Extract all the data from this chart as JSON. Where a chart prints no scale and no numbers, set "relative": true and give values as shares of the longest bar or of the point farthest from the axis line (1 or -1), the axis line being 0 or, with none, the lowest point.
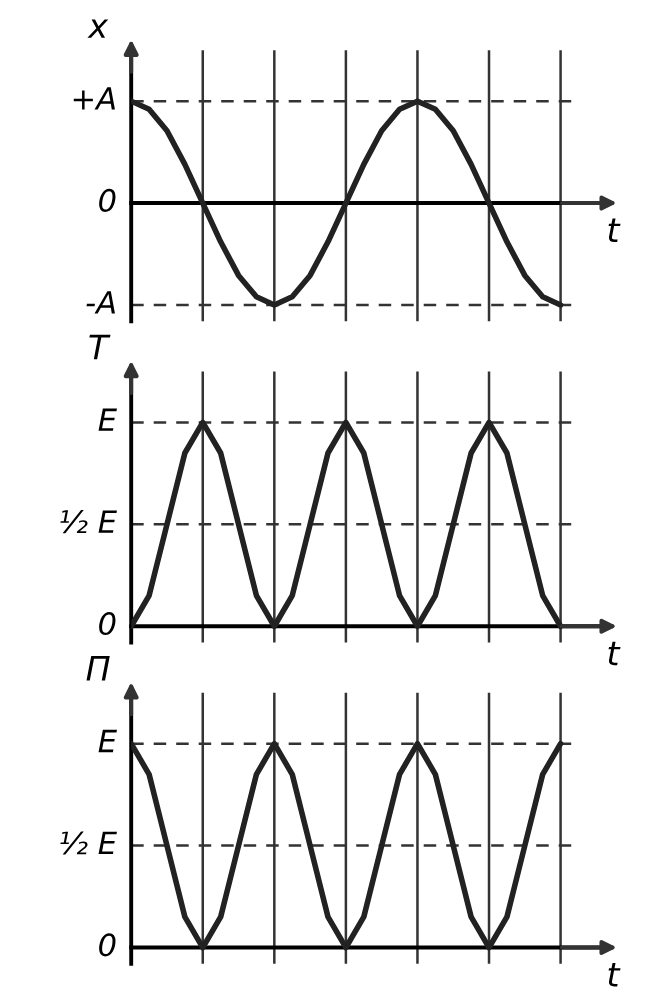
{
  "chart_data": [
    {
      "type": "line",
      "relative": true,
      "ylabel": "x",
      "xlabel": "t",
      "categories": [
        null,
        null,
        null,
        null,
        null,
        null,
        null,
        null,
        null,
        null,
        null,
        null,
        null,
        null,
        null,
        null,
        null,
        null,
        null,
        null,
        null,
        null,
        null,
        null,
        null
      ],
      "series": [
        {
          "color": "#222222",
          "values": [
            1,
            0.92,
            0.71,
            0.38,
            0,
            -0.38,
            -0.71,
            -0.92,
            -1,
            -0.92,
            -0.71,
            -0.38,
            0,
            0.38,
            0.71,
            0.92,
            1,
            0.92,
            0.71,
            0.38,
            0,
            -0.38,
            -0.71,
            -0.92,
            -1
          ]
        }
      ],
      "ref_lines": [
        {
          "axis": "y",
          "value": 1,
          "label": "+A",
          "line_style": "dashed"
        },
        {
          "axis": "y",
          "value": 0,
          "label": "0",
          "line_style": "solid"
        },
        {
          "axis": "y",
          "value": -1,
          "label": "-A",
          "line_style": "dashed"
        }
      ],
      "grid": "x"
    },
    {
      "type": "line",
      "relative": true,
      "ylabel": "T",
      "xlabel": "t",
      "categories": [
        null,
        null,
        null,
        null,
        null,
        null,
        null,
        null,
        null,
        null,
        null,
        null,
        null,
        null,
        null,
        null,
        null,
        null,
        null,
        null,
        null,
        null,
        null,
        null,
        null
      ],
      "series": [
        {
          "color": "#222222",
          "values": [
            0,
            0.15,
            0.5,
            0.85,
            1,
            0.85,
            0.5,
            0.15,
            0,
            0.15,
            0.5,
            0.85,
            1,
            0.85,
            0.5,
            0.15,
            0,
            0.15,
            0.5,
            0.85,
            1,
            0.85,
            0.5,
            0.15,
            0
          ]
        }
      ],
      "ref_lines": [
        {
          "axis": "y",
          "value": 1,
          "label": "E",
          "line_style": "dashed"
        },
        {
          "axis": "y",
          "value": 0.5,
          "label": "½ E",
          "line_style": "dashed"
        },
        {
          "axis": "y",
          "value": 0,
          "label": "0",
          "line_style": "solid"
        }
      ],
      "grid": "x"
    },
    {
      "type": "line",
      "relative": true,
      "ylabel": "П",
      "xlabel": "t",
      "categories": [
        null,
        null,
        null,
        null,
        null,
        null,
        null,
        null,
        null,
        null,
        null,
        null,
        null,
        null,
        null,
        null,
        null,
        null,
        null,
        null,
        null,
        null,
        null,
        null,
        null
      ],
      "series": [
        {
          "color": "#222222",
          "values": [
            1,
            0.85,
            0.5,
            0.15,
            0,
            0.15,
            0.5,
            0.85,
            1,
            0.85,
            0.5,
            0.15,
            0,
            0.15,
            0.5,
            0.85,
            1,
            0.85,
            0.5,
            0.15,
            0,
            0.15,
            0.5,
            0.85,
            1
          ]
        }
      ],
      "ref_lines": [
        {
          "axis": "y",
          "value": 1,
          "label": "E",
          "line_style": "dashed"
        },
        {
          "axis": "y",
          "value": 0.5,
          "label": "½ E",
          "line_style": "dashed"
        },
        {
          "axis": "y",
          "value": 0,
          "label": "0",
          "line_style": "solid"
        }
      ],
      "grid": "x"
    }
  ]
}
